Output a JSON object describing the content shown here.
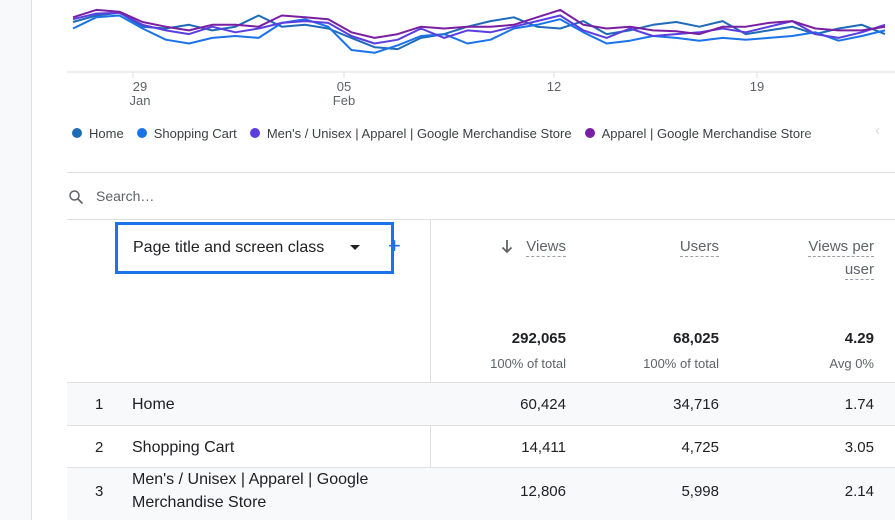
{
  "chart": {
    "x_ticks": [
      {
        "day": "29",
        "month": "Jan"
      },
      {
        "day": "05",
        "month": "Feb"
      },
      {
        "day": "12",
        "month": ""
      },
      {
        "day": "19",
        "month": ""
      }
    ],
    "series": [
      {
        "name": "Home",
        "color": "#1e6bb8",
        "values": [
          45,
          52,
          55,
          40,
          38,
          42,
          36,
          40,
          52,
          40,
          42,
          38,
          28,
          18,
          16,
          28,
          32,
          40,
          46,
          50,
          40,
          38,
          46,
          32,
          36,
          42,
          45,
          40,
          46,
          32,
          36,
          40,
          32,
          38,
          42,
          32
        ]
      },
      {
        "name": "Shopping Cart",
        "color": "#1a73e8",
        "values": [
          38,
          50,
          52,
          38,
          26,
          22,
          28,
          30,
          28,
          44,
          48,
          40,
          15,
          12,
          20,
          30,
          32,
          22,
          26,
          38,
          42,
          48,
          34,
          22,
          25,
          30,
          28,
          25,
          28,
          26,
          28,
          30,
          34,
          25,
          30,
          36
        ]
      },
      {
        "name": "Men's / Unisex | Apparel | Google Merchandise Store",
        "color": "#5b3ee0",
        "values": [
          48,
          54,
          55,
          42,
          36,
          32,
          40,
          34,
          38,
          44,
          46,
          44,
          30,
          22,
          26,
          38,
          28,
          36,
          34,
          40,
          46,
          52,
          36,
          28,
          38,
          30,
          32,
          34,
          38,
          34,
          40,
          46,
          32,
          28,
          34,
          42
        ]
      },
      {
        "name": "Apparel | Google Merchandise Store",
        "color": "#7b1fa2",
        "values": [
          50,
          58,
          56,
          45,
          40,
          36,
          42,
          42,
          40,
          52,
          50,
          48,
          34,
          28,
          32,
          40,
          38,
          40,
          40,
          42,
          50,
          58,
          42,
          38,
          40,
          36,
          35,
          32,
          40,
          40,
          44,
          46,
          38,
          36,
          36,
          40
        ]
      }
    ]
  },
  "search": {
    "placeholder": "Search…"
  },
  "table": {
    "dimension_label": "Page title and screen class",
    "add_label": "+",
    "columns": [
      {
        "line1": "Views",
        "line2": ""
      },
      {
        "line1": "Users",
        "line2": ""
      },
      {
        "line1": "Views per",
        "line2": "user"
      }
    ],
    "totals": [
      {
        "value": "292,065",
        "sub": "100% of total"
      },
      {
        "value": "68,025",
        "sub": "100% of total"
      },
      {
        "value": "4.29",
        "sub": "Avg 0%"
      }
    ],
    "rows": [
      {
        "rank": "1",
        "line1": "Home",
        "line2": "",
        "views": "60,424",
        "users": "34,716",
        "vpu": "1.74"
      },
      {
        "rank": "2",
        "line1": "Shopping Cart",
        "line2": "",
        "views": "14,411",
        "users": "4,725",
        "vpu": "3.05"
      },
      {
        "rank": "3",
        "line1": "Men's / Unisex | Apparel | Google",
        "line2": "Merchandise Store",
        "views": "12,806",
        "users": "5,998",
        "vpu": "2.14"
      }
    ]
  },
  "colors": {
    "accent": "#1a73e8"
  }
}
